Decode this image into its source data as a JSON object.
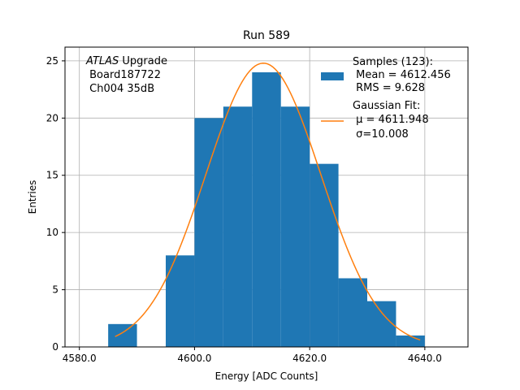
{
  "chart_data": {
    "type": "bar",
    "title": "Run 589",
    "xlabel": "Energy [ADC Counts]",
    "ylabel": "Entries",
    "xlim": [
      4577.5,
      4647.5
    ],
    "ylim": [
      0,
      26.2
    ],
    "grid": true,
    "x_ticks": [
      4580.0,
      4600.0,
      4620.0,
      4640.0
    ],
    "x_tick_labels": [
      "4580.0",
      "4600.0",
      "4620.0",
      "4640.0"
    ],
    "y_ticks": [
      0,
      5,
      10,
      15,
      20,
      25
    ],
    "y_tick_labels": [
      "0",
      "5",
      "10",
      "15",
      "20",
      "25"
    ],
    "bin_width": 5,
    "bins": [
      {
        "left": 4585,
        "count": 2
      },
      {
        "left": 4590,
        "count": 0
      },
      {
        "left": 4595,
        "count": 8
      },
      {
        "left": 4600,
        "count": 20
      },
      {
        "left": 4605,
        "count": 21
      },
      {
        "left": 4610,
        "count": 24
      },
      {
        "left": 4615,
        "count": 21
      },
      {
        "left": 4620,
        "count": 16
      },
      {
        "left": 4625,
        "count": 6
      },
      {
        "left": 4630,
        "count": 4
      },
      {
        "left": 4635,
        "count": 1
      }
    ],
    "fit": {
      "mu": 4611.948,
      "sigma": 10.008,
      "amplitude": 24.8,
      "x_range": [
        4586.2,
        4639.2
      ]
    },
    "colors": {
      "bars": "#1f77b4",
      "fit": "#ff7f0e",
      "grid": "#b0b0b0"
    },
    "legend": {
      "placement": "top-right",
      "samples_lines": [
        "Samples (123):",
        " Mean = 4612.456",
        " RMS = 9.628"
      ],
      "fit_lines": [
        "Gaussian Fit:",
        " μ = 4611.948",
        " σ=10.008"
      ]
    },
    "annotation": {
      "line1_italic": "ATLAS",
      "line1_rest": " Upgrade",
      "line2": " Board187722",
      "line3": " Ch004 35dB"
    }
  }
}
